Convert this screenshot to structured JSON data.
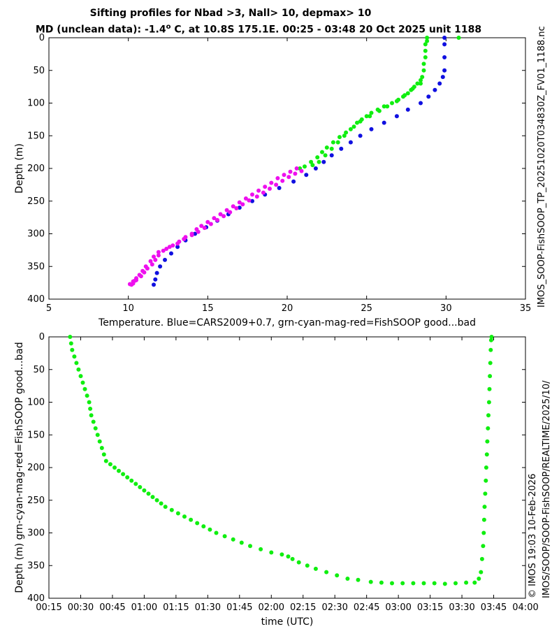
{
  "title_line1": "Sifting profiles for Nbad >3, Nall> 10, depmax> 10",
  "title_line2_prefix": "MD (unclean data): -1.4",
  "title_line2_suffix": " C, at 10.8S 175.1E. 00:25 - 03:48 20 Oct 2025 unit 1188",
  "title_line2_degree": "o",
  "right_label_1": "IMOS_SOOP-FishSOOP_TP_20251020T034830Z_FV01_1188.nc",
  "right_label_2": "© IMOS 19:03 10-Feb-2026",
  "right_label_3": "IMOS/SOOP/SOOP-FishSOOP/REALTIME/2025/10/",
  "colors": {
    "blue": "#1010e0",
    "green": "#10ee10",
    "magenta": "#ee10ee"
  },
  "chart_data": [
    {
      "type": "scatter",
      "title": "",
      "xlabel": "Temperature. Blue=CARS2009+0.7, grn-cyan-mag-red=FishSOOP good...bad",
      "ylabel": "Depth (m)",
      "xlim": [
        5,
        35
      ],
      "ylim": [
        400,
        0
      ],
      "xticks": [
        "5",
        "10",
        "15",
        "20",
        "25",
        "30",
        "35"
      ],
      "yticks": [
        "0",
        "50",
        "100",
        "150",
        "200",
        "250",
        "300",
        "350",
        "400"
      ],
      "grid": false,
      "series": [
        {
          "color": "blue",
          "points": [
            [
              29.9,
              0
            ],
            [
              29.9,
              10
            ],
            [
              29.9,
              30
            ],
            [
              29.9,
              50
            ],
            [
              29.8,
              60
            ],
            [
              29.6,
              70
            ],
            [
              29.3,
              80
            ],
            [
              28.9,
              90
            ],
            [
              28.4,
              100
            ],
            [
              27.6,
              110
            ],
            [
              26.9,
              120
            ],
            [
              26.1,
              130
            ],
            [
              25.3,
              140
            ],
            [
              24.6,
              150
            ],
            [
              24.0,
              160
            ],
            [
              23.4,
              170
            ],
            [
              22.8,
              180
            ],
            [
              22.3,
              190
            ],
            [
              21.8,
              200
            ],
            [
              21.2,
              210
            ],
            [
              20.4,
              220
            ],
            [
              19.5,
              230
            ],
            [
              18.6,
              240
            ],
            [
              17.8,
              250
            ],
            [
              17.0,
              260
            ],
            [
              16.3,
              270
            ],
            [
              15.6,
              280
            ],
            [
              14.9,
              290
            ],
            [
              14.2,
              300
            ],
            [
              13.6,
              310
            ],
            [
              13.1,
              320
            ],
            [
              12.7,
              330
            ],
            [
              12.3,
              340
            ],
            [
              12.0,
              350
            ],
            [
              11.8,
              360
            ],
            [
              11.7,
              370
            ],
            [
              11.6,
              378
            ]
          ]
        },
        {
          "color": "green",
          "points": [
            [
              30.8,
              0
            ],
            [
              28.8,
              0
            ],
            [
              28.8,
              5
            ],
            [
              28.7,
              10
            ],
            [
              28.7,
              20
            ],
            [
              28.7,
              30
            ],
            [
              28.6,
              40
            ],
            [
              28.6,
              50
            ],
            [
              28.5,
              60
            ],
            [
              28.4,
              65
            ],
            [
              28.4,
              70
            ],
            [
              28.0,
              75
            ],
            [
              27.8,
              80
            ],
            [
              27.6,
              85
            ],
            [
              27.3,
              90
            ],
            [
              27.0,
              95
            ],
            [
              26.6,
              100
            ],
            [
              26.1,
              105
            ],
            [
              25.7,
              110
            ],
            [
              25.3,
              115
            ],
            [
              25.0,
              120
            ],
            [
              24.7,
              125
            ],
            [
              24.4,
              130
            ],
            [
              24.0,
              140
            ],
            [
              23.6,
              150
            ],
            [
              23.2,
              160
            ],
            [
              22.8,
              170
            ],
            [
              22.4,
              180
            ],
            [
              22.0,
              190
            ],
            [
              21.6,
              195
            ],
            [
              28.2,
              70
            ],
            [
              27.9,
              78
            ],
            [
              27.4,
              88
            ],
            [
              26.9,
              97
            ],
            [
              26.3,
              105
            ],
            [
              25.8,
              112
            ],
            [
              25.2,
              120
            ],
            [
              24.6,
              128
            ],
            [
              24.2,
              136
            ],
            [
              23.7,
              145
            ],
            [
              23.3,
              152
            ],
            [
              22.9,
              160
            ],
            [
              22.5,
              168
            ],
            [
              22.2,
              175
            ],
            [
              21.9,
              183
            ],
            [
              21.5,
              190
            ],
            [
              21.1,
              197
            ],
            [
              20.8,
              200
            ]
          ]
        },
        {
          "color": "magenta",
          "points": [
            [
              20.6,
              200
            ],
            [
              20.2,
              205
            ],
            [
              19.8,
              210
            ],
            [
              19.4,
              215
            ],
            [
              19.0,
              222
            ],
            [
              18.6,
              228
            ],
            [
              18.2,
              234
            ],
            [
              17.8,
              240
            ],
            [
              17.4,
              246
            ],
            [
              17.0,
              252
            ],
            [
              16.6,
              258
            ],
            [
              16.2,
              264
            ],
            [
              15.8,
              270
            ],
            [
              15.4,
              276
            ],
            [
              15.0,
              282
            ],
            [
              14.6,
              288
            ],
            [
              14.3,
              293
            ],
            [
              14.0,
              300
            ],
            [
              13.6,
              305
            ],
            [
              13.2,
              312
            ],
            [
              12.8,
              318
            ],
            [
              12.4,
              323
            ],
            [
              11.9,
              328
            ],
            [
              11.6,
              335
            ],
            [
              11.4,
              342
            ],
            [
              11.1,
              350
            ],
            [
              10.9,
              357
            ],
            [
              10.7,
              363
            ],
            [
              10.5,
              368
            ],
            [
              10.3,
              373
            ],
            [
              10.1,
              377
            ],
            [
              20.9,
              204
            ],
            [
              20.5,
              208
            ],
            [
              20.1,
              213
            ],
            [
              19.7,
              219
            ],
            [
              19.3,
              225
            ],
            [
              18.9,
              231
            ],
            [
              18.5,
              237
            ],
            [
              18.1,
              243
            ],
            [
              17.6,
              249
            ],
            [
              17.2,
              255
            ],
            [
              16.8,
              261
            ],
            [
              16.4,
              267
            ],
            [
              16.0,
              273
            ],
            [
              15.6,
              279
            ],
            [
              15.2,
              285
            ],
            [
              14.8,
              291
            ],
            [
              14.4,
              297
            ],
            [
              14.0,
              302
            ],
            [
              13.5,
              308
            ],
            [
              13.1,
              315
            ],
            [
              12.6,
              320
            ],
            [
              12.2,
              326
            ],
            [
              11.9,
              333
            ],
            [
              11.7,
              340
            ],
            [
              11.5,
              347
            ],
            [
              11.2,
              353
            ],
            [
              11.0,
              359
            ],
            [
              10.8,
              365
            ],
            [
              10.5,
              371
            ],
            [
              10.3,
              376
            ],
            [
              10.4,
              372
            ],
            [
              10.2,
              378
            ]
          ]
        }
      ]
    },
    {
      "type": "scatter",
      "title": "",
      "xlabel": "time (UTC)",
      "ylabel": "Depth (m) grn-cyan-mag-red=FishSOOP good...bad",
      "xlim": [
        15,
        240
      ],
      "ylim": [
        400,
        0
      ],
      "xticks": [
        "00:15",
        "00:30",
        "00:45",
        "01:00",
        "01:15",
        "01:30",
        "01:45",
        "02:00",
        "02:15",
        "02:30",
        "02:45",
        "03:00",
        "03:15",
        "03:30",
        "03:45",
        "04:00"
      ],
      "yticks": [
        "0",
        "50",
        "100",
        "150",
        "200",
        "250",
        "300",
        "350",
        "400"
      ],
      "grid": false,
      "series": [
        {
          "color": "green",
          "points": [
            [
              25.0,
              0
            ],
            [
              25.5,
              10
            ],
            [
              26,
              20
            ],
            [
              27,
              30
            ],
            [
              28,
              40
            ],
            [
              29,
              50
            ],
            [
              30,
              60
            ],
            [
              31,
              70
            ],
            [
              32,
              80
            ],
            [
              33,
              90
            ],
            [
              34,
              100
            ],
            [
              34.5,
              110
            ],
            [
              35,
              120
            ],
            [
              36,
              130
            ],
            [
              37,
              140
            ],
            [
              38,
              150
            ],
            [
              39,
              160
            ],
            [
              40,
              170
            ],
            [
              41,
              180
            ],
            [
              42,
              190
            ],
            [
              44,
              195
            ],
            [
              46,
              200
            ],
            [
              48,
              205
            ],
            [
              50,
              210
            ],
            [
              52,
              215
            ],
            [
              54,
              220
            ],
            [
              56,
              225
            ],
            [
              58,
              230
            ],
            [
              60,
              235
            ],
            [
              62,
              240
            ],
            [
              64,
              245
            ],
            [
              66,
              250
            ],
            [
              68,
              255
            ],
            [
              70,
              260
            ],
            [
              73,
              265
            ],
            [
              76,
              270
            ],
            [
              79,
              275
            ],
            [
              82,
              280
            ],
            [
              85,
              285
            ],
            [
              88,
              290
            ],
            [
              91,
              295
            ],
            [
              94,
              300
            ],
            [
              98,
              305
            ],
            [
              102,
              310
            ],
            [
              106,
              315
            ],
            [
              110,
              320
            ],
            [
              115,
              325
            ],
            [
              120,
              330
            ],
            [
              125,
              333
            ],
            [
              128,
              336
            ],
            [
              130,
              340
            ],
            [
              133,
              345
            ],
            [
              137,
              350
            ],
            [
              141,
              355
            ],
            [
              146,
              360
            ],
            [
              151,
              365
            ],
            [
              156,
              370
            ],
            [
              161,
              372
            ],
            [
              167,
              375
            ],
            [
              172,
              376
            ],
            [
              177,
              377
            ],
            [
              182,
              377
            ],
            [
              187,
              377
            ],
            [
              192,
              377
            ],
            [
              197,
              377
            ],
            [
              202,
              378
            ],
            [
              207,
              377
            ],
            [
              212,
              376
            ],
            [
              216,
              376
            ],
            [
              218,
              370
            ],
            [
              219,
              360
            ],
            [
              219.5,
              340
            ],
            [
              220,
              320
            ],
            [
              220.3,
              300
            ],
            [
              220.5,
              280
            ],
            [
              220.7,
              260
            ],
            [
              221,
              240
            ],
            [
              221.3,
              220
            ],
            [
              221.5,
              200
            ],
            [
              221.8,
              180
            ],
            [
              222,
              160
            ],
            [
              222.3,
              140
            ],
            [
              222.5,
              120
            ],
            [
              222.8,
              100
            ],
            [
              223,
              80
            ],
            [
              223.2,
              60
            ],
            [
              223.4,
              40
            ],
            [
              223.6,
              20
            ],
            [
              223.8,
              5
            ],
            [
              224,
              0
            ]
          ]
        }
      ]
    }
  ]
}
